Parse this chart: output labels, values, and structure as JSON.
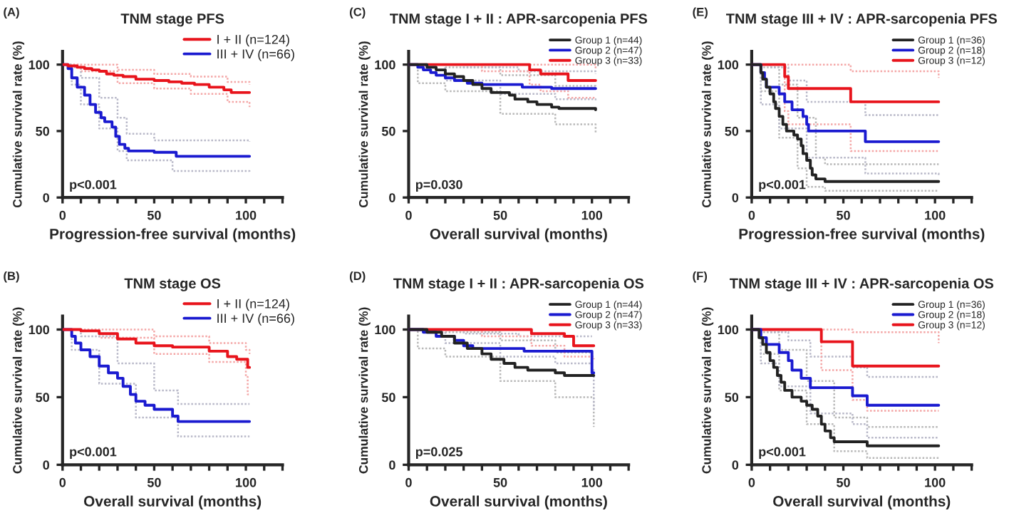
{
  "chart_data": [
    {
      "type": "step",
      "title": "TNM stage PFS",
      "xlabel": "Progression-free survival (months)",
      "ylabel": "Cumulative survival rate (%)",
      "xlim": [
        0,
        120
      ],
      "ylim": [
        0,
        110
      ],
      "xticks": [
        0,
        {
          "value": 10,
          "label": null
        },
        {
          "value": 20,
          "label": null
        },
        {
          "value": 30,
          "label": null
        },
        {
          "value": 40,
          "label": null
        },
        50,
        {
          "value": 60,
          "label": null
        },
        {
          "value": 70,
          "label": null
        },
        {
          "value": 80,
          "label": null
        },
        {
          "value": 90,
          "label": null
        },
        100,
        {
          "value": 110,
          "label": null
        },
        {
          "value": 120,
          "label": null
        }
      ],
      "yticks": [
        0,
        50,
        100
      ],
      "legend": "top right",
      "annotations": [
        "(A)",
        "p<0.001"
      ],
      "series": [
        {
          "name": "I + II (n=124)",
          "color": "#e8141c",
          "x": [
            0,
            3,
            8,
            12,
            16,
            20,
            24,
            28,
            33,
            40,
            50,
            58,
            65,
            72,
            80,
            88,
            92,
            102
          ],
          "values": [
            100,
            99,
            98,
            97,
            96,
            95,
            93,
            92,
            91,
            89,
            88,
            87,
            86,
            85,
            83,
            81,
            79,
            79
          ]
        },
        {
          "name": "III + IV (n=66)",
          "color": "#1a1ad0",
          "x": [
            0,
            3,
            5,
            8,
            12,
            15,
            18,
            21,
            23,
            27,
            29,
            31,
            34,
            36,
            50,
            62,
            102
          ],
          "values": [
            100,
            97,
            90,
            83,
            77,
            70,
            64,
            60,
            57,
            53,
            46,
            40,
            37,
            35,
            34,
            31,
            31
          ]
        },
        {
          "color": "#f4a6a6",
          "line_style": "dotted",
          "x": [
            0,
            10,
            30,
            50,
            70,
            90,
            102
          ],
          "values": [
            100,
            100,
            96,
            93,
            91,
            87,
            85
          ]
        },
        {
          "color": "#f4a6a6",
          "line_style": "dotted",
          "x": [
            0,
            10,
            30,
            50,
            70,
            90,
            102
          ],
          "values": [
            100,
            95,
            86,
            82,
            78,
            72,
            68
          ]
        },
        {
          "color": "#b8b8c8",
          "line_style": "dotted",
          "x": [
            0,
            5,
            10,
            20,
            30,
            35,
            50,
            102
          ],
          "values": [
            100,
            98,
            90,
            75,
            60,
            48,
            43,
            42
          ]
        },
        {
          "color": "#b8b8c8",
          "line_style": "dotted",
          "x": [
            0,
            5,
            10,
            20,
            30,
            35,
            60,
            102
          ],
          "values": [
            100,
            85,
            70,
            52,
            35,
            28,
            20,
            19
          ]
        }
      ]
    },
    {
      "type": "step",
      "title": "TNM stage OS",
      "xlabel": "Overall survival (months)",
      "ylabel": "Cumulative survival rate (%)",
      "xlim": [
        0,
        120
      ],
      "ylim": [
        0,
        110
      ],
      "xticks": [
        0,
        {
          "value": 10,
          "label": null
        },
        {
          "value": 20,
          "label": null
        },
        {
          "value": 30,
          "label": null
        },
        {
          "value": 40,
          "label": null
        },
        50,
        {
          "value": 60,
          "label": null
        },
        {
          "value": 70,
          "label": null
        },
        {
          "value": 80,
          "label": null
        },
        {
          "value": 90,
          "label": null
        },
        100,
        {
          "value": 110,
          "label": null
        },
        {
          "value": 120,
          "label": null
        }
      ],
      "yticks": [
        0,
        50,
        100
      ],
      "legend": "top right",
      "annotations": [
        "(B)",
        "p<0.001"
      ],
      "series": [
        {
          "name": "I + II (n=124)",
          "color": "#e8141c",
          "x": [
            0,
            10,
            20,
            30,
            40,
            50,
            60,
            80,
            90,
            95,
            101,
            102
          ],
          "values": [
            100,
            99,
            97,
            93,
            90,
            88,
            87,
            84,
            80,
            78,
            72,
            72
          ]
        },
        {
          "name": "III + IV (n=66)",
          "color": "#1a1ad0",
          "x": [
            0,
            5,
            7,
            10,
            15,
            20,
            25,
            30,
            33,
            37,
            40,
            45,
            50,
            60,
            63,
            102
          ],
          "values": [
            100,
            95,
            90,
            85,
            80,
            73,
            68,
            64,
            58,
            52,
            47,
            44,
            41,
            36,
            32,
            32
          ]
        },
        {
          "color": "#f4a6a6",
          "line_style": "dotted",
          "x": [
            0,
            20,
            50,
            80,
            100,
            102
          ],
          "values": [
            100,
            100,
            95,
            90,
            85,
            82
          ]
        },
        {
          "color": "#f4a6a6",
          "line_style": "dotted",
          "x": [
            0,
            20,
            50,
            80,
            100,
            101,
            102
          ],
          "values": [
            100,
            94,
            82,
            76,
            65,
            52,
            52
          ]
        },
        {
          "color": "#b8b8c8",
          "line_style": "dotted",
          "x": [
            0,
            10,
            30,
            50,
            63,
            102
          ],
          "values": [
            100,
            95,
            75,
            55,
            45,
            45
          ]
        },
        {
          "color": "#b8b8c8",
          "line_style": "dotted",
          "x": [
            0,
            5,
            20,
            40,
            63,
            102
          ],
          "values": [
            100,
            85,
            60,
            35,
            21,
            21
          ]
        }
      ]
    },
    {
      "type": "step",
      "title": "TNM stage I + II : APR-sarcopenia PFS",
      "xlabel": "Overall survival (months)",
      "ylabel": "Cumulative survival rate (%)",
      "xlim": [
        0,
        120
      ],
      "ylim": [
        0,
        110
      ],
      "xticks": [
        0,
        {
          "value": 10,
          "label": null
        },
        {
          "value": 20,
          "label": null
        },
        {
          "value": 30,
          "label": null
        },
        {
          "value": 40,
          "label": null
        },
        50,
        {
          "value": 60,
          "label": null
        },
        {
          "value": 70,
          "label": null
        },
        {
          "value": 80,
          "label": null
        },
        {
          "value": 90,
          "label": null
        },
        100,
        {
          "value": 110,
          "label": null
        },
        {
          "value": 120,
          "label": null
        }
      ],
      "yticks": [
        0,
        50,
        100
      ],
      "legend": "top right",
      "annotations": [
        "(C)",
        "p=0.030"
      ],
      "series": [
        {
          "name": "Group 1 (n=44)",
          "color": "#222222",
          "x": [
            0,
            10,
            15,
            20,
            25,
            30,
            35,
            40,
            45,
            55,
            58,
            65,
            70,
            78,
            82,
            102
          ],
          "values": [
            100,
            98,
            96,
            93,
            91,
            88,
            85,
            82,
            79,
            77,
            74,
            72,
            70,
            68,
            67,
            66
          ]
        },
        {
          "name": "Group 2 (n=47)",
          "color": "#1a1ad0",
          "x": [
            0,
            5,
            8,
            12,
            15,
            20,
            25,
            32,
            40,
            50,
            62,
            78,
            102
          ],
          "values": [
            100,
            98,
            96,
            94,
            92,
            90,
            88,
            86,
            85,
            85,
            83,
            82,
            82
          ]
        },
        {
          "name": "Group 3 (n=33)",
          "color": "#e8141c",
          "x": [
            0,
            66,
            72,
            87,
            102
          ],
          "values": [
            100,
            96,
            93,
            88,
            88
          ]
        },
        {
          "color": "#b8b8b8",
          "line_style": "dotted",
          "x": [
            0,
            20,
            50,
            80,
            102
          ],
          "values": [
            100,
            98,
            92,
            84,
            80
          ]
        },
        {
          "color": "#b8b8b8",
          "line_style": "dotted",
          "x": [
            0,
            5,
            20,
            50,
            80,
            102
          ],
          "values": [
            100,
            86,
            80,
            63,
            55,
            49
          ]
        },
        {
          "color": "#b8b8c8",
          "line_style": "dotted",
          "x": [
            0,
            30,
            60,
            102
          ],
          "values": [
            100,
            98,
            95,
            93
          ]
        },
        {
          "color": "#b8b8c8",
          "line_style": "dotted",
          "x": [
            0,
            20,
            50,
            80,
            102
          ],
          "values": [
            100,
            88,
            78,
            74,
            72
          ]
        },
        {
          "color": "#f4a6a6",
          "line_style": "dotted",
          "x": [
            0,
            60,
            102
          ],
          "values": [
            100,
            100,
            97
          ]
        },
        {
          "color": "#f4a6a6",
          "line_style": "dotted",
          "x": [
            0,
            40,
            66,
            72,
            87,
            102
          ],
          "values": [
            100,
            95,
            85,
            80,
            75,
            75
          ]
        }
      ]
    },
    {
      "type": "step",
      "title": "TNM stage I + II : APR-sarcopenia OS",
      "xlabel": "Overall survival (months)",
      "ylabel": "Cumulative survival rate (%)",
      "xlim": [
        0,
        120
      ],
      "ylim": [
        0,
        110
      ],
      "xticks": [
        0,
        {
          "value": 10,
          "label": null
        },
        {
          "value": 20,
          "label": null
        },
        {
          "value": 30,
          "label": null
        },
        {
          "value": 40,
          "label": null
        },
        50,
        {
          "value": 60,
          "label": null
        },
        {
          "value": 70,
          "label": null
        },
        {
          "value": 80,
          "label": null
        },
        {
          "value": 90,
          "label": null
        },
        100,
        {
          "value": 110,
          "label": null
        },
        {
          "value": 120,
          "label": null
        }
      ],
      "yticks": [
        0,
        50,
        100
      ],
      "legend": "top right",
      "annotations": [
        "(D)",
        "p=0.025"
      ],
      "series": [
        {
          "name": "Group 1 (n=44)",
          "color": "#222222",
          "x": [
            0,
            10,
            18,
            25,
            32,
            40,
            45,
            52,
            58,
            65,
            80,
            85,
            101
          ],
          "values": [
            100,
            98,
            95,
            90,
            86,
            82,
            78,
            75,
            72,
            70,
            68,
            66,
            66
          ]
        },
        {
          "name": "Group 2 (n=47)",
          "color": "#1a1ad0",
          "x": [
            0,
            8,
            15,
            25,
            30,
            35,
            63,
            100,
            101
          ],
          "values": [
            100,
            98,
            95,
            92,
            88,
            86,
            84,
            68,
            68
          ]
        },
        {
          "name": "Group 3 (n=33)",
          "color": "#e8141c",
          "x": [
            0,
            67,
            85,
            90,
            101
          ],
          "values": [
            100,
            97,
            95,
            88,
            88
          ]
        },
        {
          "color": "#b8b8b8",
          "line_style": "dotted",
          "x": [
            0,
            20,
            50,
            80,
            100
          ],
          "values": [
            100,
            98,
            92,
            83,
            80
          ]
        },
        {
          "color": "#b8b8b8",
          "line_style": "dotted",
          "x": [
            0,
            5,
            20,
            50,
            80,
            100,
            101
          ],
          "values": [
            100,
            86,
            80,
            62,
            50,
            50,
            28
          ]
        },
        {
          "color": "#b8b8c8",
          "line_style": "dotted",
          "x": [
            0,
            30,
            60,
            100
          ],
          "values": [
            100,
            97,
            95,
            95
          ]
        },
        {
          "color": "#b8b8c8",
          "line_style": "dotted",
          "x": [
            0,
            20,
            50,
            80,
            100,
            101
          ],
          "values": [
            100,
            90,
            80,
            75,
            70,
            40
          ]
        },
        {
          "color": "#f4a6a6",
          "line_style": "dotted",
          "x": [
            0,
            40,
            67,
            85,
            101
          ],
          "values": [
            100,
            95,
            88,
            80,
            78
          ]
        }
      ]
    },
    {
      "type": "step",
      "title": "TNM stage III + IV : APR-sarcopenia PFS",
      "xlabel": "Progression-free survival (months)",
      "ylabel": "Cumulative survival rate (%)",
      "xlim": [
        0,
        120
      ],
      "ylim": [
        0,
        110
      ],
      "xticks": [
        0,
        {
          "value": 10,
          "label": null
        },
        {
          "value": 20,
          "label": null
        },
        {
          "value": 30,
          "label": null
        },
        {
          "value": 40,
          "label": null
        },
        50,
        {
          "value": 60,
          "label": null
        },
        {
          "value": 70,
          "label": null
        },
        {
          "value": 80,
          "label": null
        },
        {
          "value": 90,
          "label": null
        },
        100,
        {
          "value": 110,
          "label": null
        },
        {
          "value": 120,
          "label": null
        }
      ],
      "yticks": [
        0,
        50,
        100
      ],
      "legend": "top right",
      "annotations": [
        "(E)",
        "p<0.001"
      ],
      "series": [
        {
          "name": "Group 1 (n=36)",
          "color": "#222222",
          "x": [
            0,
            5,
            6,
            8,
            10,
            12,
            13,
            15,
            17,
            19,
            23,
            25,
            27,
            28,
            30,
            32,
            33,
            35,
            40,
            102
          ],
          "values": [
            100,
            94,
            89,
            83,
            78,
            72,
            67,
            61,
            55,
            50,
            47,
            44,
            39,
            33,
            28,
            22,
            17,
            14,
            12,
            12
          ]
        },
        {
          "name": "Group 2 (n=18)",
          "color": "#1a1ad0",
          "x": [
            0,
            5,
            7,
            8,
            15,
            18,
            22,
            28,
            30,
            31,
            62,
            102
          ],
          "values": [
            100,
            94,
            89,
            83,
            78,
            72,
            66,
            61,
            55,
            50,
            42,
            42
          ]
        },
        {
          "name": "Group 3 (n=12)",
          "color": "#e8141c",
          "x": [
            0,
            18,
            20,
            54,
            102
          ],
          "values": [
            100,
            91,
            82,
            72,
            72
          ]
        },
        {
          "color": "#b8b8b8",
          "line_style": "dotted",
          "x": [
            0,
            5,
            15,
            25,
            35,
            40,
            102
          ],
          "values": [
            100,
            98,
            85,
            60,
            30,
            25,
            25
          ]
        },
        {
          "color": "#b8b8b8",
          "line_style": "dotted",
          "x": [
            0,
            5,
            15,
            25,
            30,
            40,
            102
          ],
          "values": [
            100,
            80,
            45,
            22,
            8,
            5,
            5
          ]
        },
        {
          "color": "#b8b8c8",
          "line_style": "dotted",
          "x": [
            0,
            10,
            20,
            30,
            62,
            102
          ],
          "values": [
            100,
            98,
            88,
            72,
            62,
            62
          ]
        },
        {
          "color": "#b8b8c8",
          "line_style": "dotted",
          "x": [
            0,
            5,
            15,
            30,
            62,
            102
          ],
          "values": [
            100,
            70,
            52,
            30,
            18,
            17
          ]
        },
        {
          "color": "#f4a6a6",
          "line_style": "dotted",
          "x": [
            0,
            20,
            54,
            102
          ],
          "values": [
            100,
            100,
            95,
            90
          ]
        },
        {
          "color": "#f4a6a6",
          "line_style": "dotted",
          "x": [
            0,
            18,
            20,
            54,
            62,
            102
          ],
          "values": [
            100,
            65,
            55,
            35,
            35,
            35
          ]
        }
      ]
    },
    {
      "type": "step",
      "title": "TNM stage III + IV : APR-sarcopenia OS",
      "xlabel": "Overall survival (months)",
      "ylabel": "Cumulative survival rate (%)",
      "xlim": [
        0,
        120
      ],
      "ylim": [
        0,
        110
      ],
      "xticks": [
        0,
        {
          "value": 10,
          "label": null
        },
        {
          "value": 20,
          "label": null
        },
        {
          "value": 30,
          "label": null
        },
        {
          "value": 40,
          "label": null
        },
        50,
        {
          "value": 60,
          "label": null
        },
        {
          "value": 70,
          "label": null
        },
        {
          "value": 80,
          "label": null
        },
        {
          "value": 90,
          "label": null
        },
        100,
        {
          "value": 110,
          "label": null
        },
        {
          "value": 120,
          "label": null
        }
      ],
      "yticks": [
        0,
        50,
        100
      ],
      "legend": "top right",
      "annotations": [
        "(F)",
        "p<0.001"
      ],
      "series": [
        {
          "name": "Group 1 (n=36)",
          "color": "#222222",
          "x": [
            0,
            4,
            6,
            8,
            10,
            12,
            14,
            16,
            18,
            22,
            27,
            30,
            33,
            36,
            38,
            40,
            43,
            45,
            63,
            102
          ],
          "values": [
            100,
            94,
            89,
            83,
            77,
            72,
            66,
            61,
            55,
            50,
            47,
            44,
            41,
            36,
            30,
            25,
            20,
            17,
            14,
            14
          ]
        },
        {
          "name": "Group 2 (n=18)",
          "color": "#1a1ad0",
          "x": [
            0,
            5,
            8,
            15,
            20,
            22,
            27,
            32,
            55,
            63,
            102
          ],
          "values": [
            100,
            94,
            89,
            83,
            77,
            70,
            64,
            57,
            51,
            44,
            44
          ]
        },
        {
          "name": "Group 3 (n=12)",
          "color": "#e8141c",
          "x": [
            0,
            38,
            55,
            102
          ],
          "values": [
            100,
            91,
            73,
            73
          ]
        },
        {
          "color": "#b8b8b8",
          "line_style": "dotted",
          "x": [
            0,
            5,
            15,
            30,
            45,
            63,
            102
          ],
          "values": [
            100,
            98,
            85,
            62,
            35,
            28,
            28
          ]
        },
        {
          "color": "#b8b8b8",
          "line_style": "dotted",
          "x": [
            0,
            5,
            15,
            30,
            45,
            63,
            102
          ],
          "values": [
            100,
            82,
            55,
            30,
            10,
            5,
            5
          ]
        },
        {
          "color": "#b8b8c8",
          "line_style": "dotted",
          "x": [
            0,
            10,
            20,
            32,
            55,
            63,
            102
          ],
          "values": [
            100,
            98,
            92,
            80,
            72,
            65,
            65
          ]
        },
        {
          "color": "#b8b8c8",
          "line_style": "dotted",
          "x": [
            0,
            5,
            15,
            32,
            55,
            63,
            102
          ],
          "values": [
            100,
            75,
            58,
            38,
            30,
            20,
            20
          ]
        },
        {
          "color": "#f4a6a6",
          "line_style": "dotted",
          "x": [
            0,
            38,
            55,
            102
          ],
          "values": [
            100,
            100,
            98,
            90
          ]
        },
        {
          "color": "#f4a6a6",
          "line_style": "dotted",
          "x": [
            0,
            38,
            55,
            63,
            102
          ],
          "values": [
            100,
            70,
            48,
            40,
            40
          ]
        }
      ]
    }
  ]
}
